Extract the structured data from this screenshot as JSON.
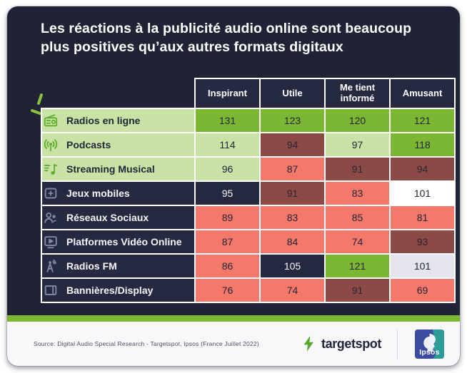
{
  "title": "Les réactions à la publicité audio online sont beaucoup plus positives qu’aux autres formats digitaux",
  "colors": {
    "c-card": "#1f2335",
    "c-navy": "#252a40",
    "c-bright": "#7cb733",
    "c-light": "#c9e3a6",
    "c-salmon": "#f5796a",
    "c-maroon": "#8c4a47",
    "c-offwhite": "#e4e5ec",
    "c-accent": "#7cb733"
  },
  "chart_data": {
    "type": "heatmap",
    "title": "Les réactions à la publicité audio online sont beaucoup plus positives qu’aux autres formats digitaux",
    "columns": [
      "Inspirant",
      "Utile",
      "Me tient informé",
      "Amusant"
    ],
    "rows": [
      {
        "label": "Radios en ligne",
        "icon": "radio-icon",
        "group": "green",
        "values": [
          131,
          123,
          120,
          121
        ],
        "cell_styles": [
          "bright",
          "bright",
          "bright",
          "bright"
        ]
      },
      {
        "label": "Podcasts",
        "icon": "podcast-icon",
        "group": "green",
        "values": [
          114,
          94,
          97,
          118
        ],
        "cell_styles": [
          "light",
          "maroon",
          "light",
          "bright"
        ]
      },
      {
        "label": "Streaming Musical",
        "icon": "music-icon",
        "group": "green",
        "values": [
          96,
          87,
          91,
          94
        ],
        "cell_styles": [
          "light",
          "salmon",
          "maroon",
          "maroon"
        ]
      },
      {
        "label": "Jeux mobiles",
        "icon": "game-icon",
        "group": "dark",
        "values": [
          95,
          91,
          83,
          101
        ],
        "cell_styles": [
          "navy",
          "maroon",
          "salmon",
          "white"
        ]
      },
      {
        "label": "Réseaux Sociaux",
        "icon": "social-icon",
        "group": "dark",
        "values": [
          89,
          83,
          85,
          81
        ],
        "cell_styles": [
          "salmon",
          "salmon",
          "salmon",
          "salmon"
        ]
      },
      {
        "label": "Platformes Vidéo Online",
        "icon": "video-icon",
        "group": "dark",
        "values": [
          87,
          84,
          74,
          93
        ],
        "cell_styles": [
          "salmon",
          "salmon",
          "salmon",
          "maroon"
        ]
      },
      {
        "label": "Radios FM",
        "icon": "antenna-icon",
        "group": "dark",
        "values": [
          86,
          105,
          121,
          101
        ],
        "cell_styles": [
          "salmon",
          "navy",
          "bright",
          "offwhite"
        ]
      },
      {
        "label": "Bannières/Display",
        "icon": "banner-icon",
        "group": "dark",
        "values": [
          76,
          74,
          91,
          69
        ],
        "cell_styles": [
          "salmon",
          "salmon",
          "maroon",
          "salmon"
        ]
      }
    ]
  },
  "footer": {
    "source": "Source: Digital Audio Special Research - Targetspot, Ipsos (France Juillet 2022)",
    "targetspot_label": "targetspot",
    "ipsos_label": "Ipsos"
  }
}
